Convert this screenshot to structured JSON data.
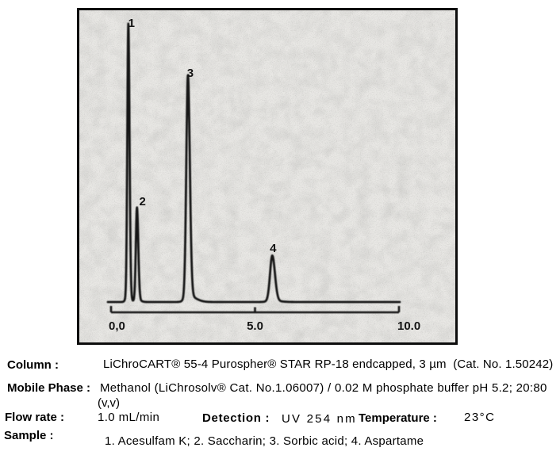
{
  "chart_data": {
    "type": "line",
    "title": "",
    "xlabel": "",
    "ylabel": "",
    "description": "HPLC chromatogram with four peaks",
    "x_axis": {
      "min": 0,
      "max": 10,
      "ticks": [
        {
          "t": 0,
          "label": "0,0"
        },
        {
          "t": 5,
          "label": "5.0"
        },
        {
          "t": 10,
          "label": "10.0"
        }
      ]
    },
    "peaks": [
      {
        "label": "1",
        "t": 0.6,
        "rel_height": 1.0,
        "sigma": 0.05,
        "tail": 0.0
      },
      {
        "label": "2",
        "t": 0.9,
        "rel_height": 0.34,
        "sigma": 0.055,
        "tail": 0.05
      },
      {
        "label": "3",
        "t": 2.67,
        "rel_height": 0.815,
        "sigma": 0.08,
        "tail": 0.2
      },
      {
        "label": "4",
        "t": 5.6,
        "rel_height": 0.167,
        "sigma": 0.11,
        "tail": 0.15
      }
    ],
    "colors": {
      "trace": "#1a1a1a",
      "plot_background": "#e8e7e4"
    }
  },
  "specs": {
    "column": {
      "label": "Column :",
      "value": "LiChroCART® 55-4 Purospher® STAR RP-18 endcapped, 3 µm  (Cat. No. 1.50242)"
    },
    "mobile_phase": {
      "label": "Mobile Phase :",
      "value_lines": [
        "Methanol (LiChrosolv® Cat. No.1.06007) / 0.02 M phosphate buffer pH 5.2; 20:80",
        "(v,v)"
      ]
    },
    "flow_rate": {
      "label": "Flow rate :",
      "value": "1.0 mL/min"
    },
    "detection": {
      "label": "Detection :",
      "value": "UV 254 nm"
    },
    "temperature": {
      "label": "Temperature :",
      "value": "23°C"
    },
    "sample": {
      "label": "Sample :",
      "value": "1. Acesulfam K; 2. Saccharin; 3. Sorbic acid; 4. Aspartame"
    }
  }
}
